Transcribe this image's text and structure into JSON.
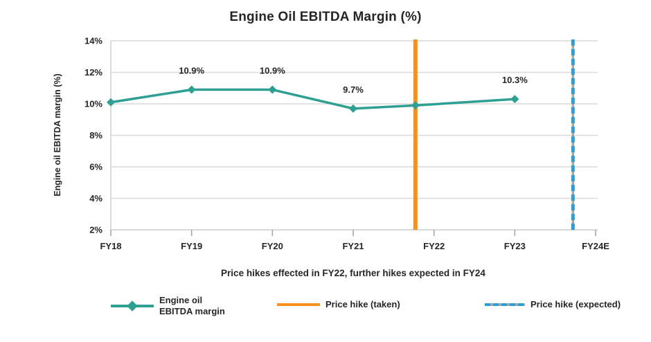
{
  "title": "Engine Oil EBITDA Margin (%)",
  "x_axis_caption": "Price hikes effected in FY22, further hikes expected in FY24",
  "colors": {
    "series_teal": "#2EA093",
    "vline_orange": "#F5921E",
    "vline_blue": "#2E9FD6",
    "gridline": "#D9D9D9",
    "axis_line": "#BFBFBF",
    "tick": "#A6A6A6",
    "text": "#262626",
    "background": "#FFFFFF"
  },
  "chart_data": {
    "type": "line",
    "title": "Engine Oil EBITDA Margin (%)",
    "xlabel": "Price hikes effected in FY22, further hikes expected in FY24",
    "ylabel": "Engine oil EBITDA margin (%)",
    "categories": [
      "FY18",
      "FY19",
      "FY20",
      "FY21",
      "FY22",
      "FY23",
      "FY24E"
    ],
    "ylim": [
      2,
      14
    ],
    "ytick_step": 2,
    "ytick_labels_top_to_bottom": [
      "14%",
      "12%",
      "10%",
      "8%",
      "6%",
      "4%",
      "2%"
    ],
    "grid": true,
    "legend_position": "bottom",
    "series": [
      {
        "name": "Engine oil EBITDA margin",
        "color": "#2EA093",
        "marker": "diamond",
        "points": [
          {
            "xi": 0,
            "value": 10.1,
            "label": ""
          },
          {
            "xi": 1,
            "value": 10.9,
            "label": "10.9%"
          },
          {
            "xi": 2,
            "value": 10.9,
            "label": "10.9%"
          },
          {
            "xi": 3,
            "value": 9.7,
            "label": "9.7%"
          },
          {
            "xi": 3.77,
            "value": 9.9,
            "label": ""
          },
          {
            "xi": 5,
            "value": 10.3,
            "label": "10.3%"
          }
        ]
      }
    ],
    "vlines": [
      {
        "xi": 3.77,
        "style": "solid",
        "color": "#F5921E",
        "label": "Price hike (taken)"
      },
      {
        "xi": 5.72,
        "style": "dashed",
        "color": "#2E9FD6",
        "label": "Price hike (expected)"
      }
    ]
  },
  "legend": {
    "items": [
      {
        "label_line1": "Engine oil",
        "label_line2": "EBITDA margin",
        "color": "#2EA093",
        "style": "line-diamond"
      },
      {
        "label": "Price hike (taken)",
        "color": "#F5921E",
        "style": "solid-line"
      },
      {
        "label": "Price hike (expected)",
        "color": "#2E9FD6",
        "style": "dashed-line"
      }
    ]
  }
}
